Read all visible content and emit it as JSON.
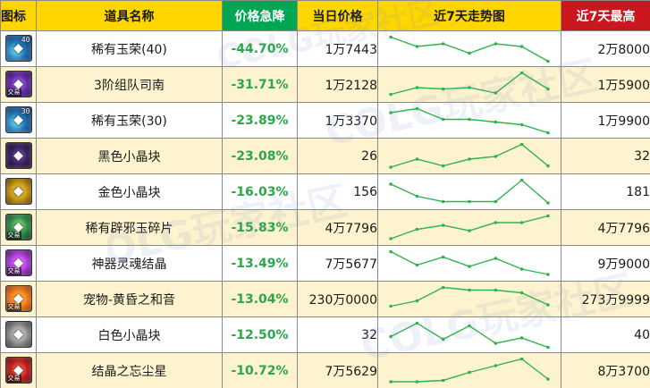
{
  "header": {
    "icon": "图标",
    "name": "道具名称",
    "drop": "价格急降",
    "today": "当日价格",
    "trend": "近7天走势图",
    "max": "近7天最高"
  },
  "colors": {
    "header_yellow": "#ffd600",
    "header_green": "#00a651",
    "header_red": "#c8171e",
    "drop_text": "#2aa84a",
    "trend_line": "#2fb34a",
    "row_alt": "#fdf3cf"
  },
  "watermark": {
    "text": "COLG玩家社区"
  },
  "rows": [
    {
      "icon": "rare-jade-icon",
      "icon_class": "icon-green",
      "badge": "40",
      "tradeable": "",
      "name": "稀有玉荣(40)",
      "drop": "-44.70%",
      "today": "1万7443",
      "max": "2万8000",
      "trend": [
        0.95,
        0.6,
        0.7,
        0.35,
        0.7,
        0.6,
        0.05
      ]
    },
    {
      "icon": "squad-guide-icon",
      "icon_class": "icon-purple",
      "badge": "",
      "tradeable": "交易",
      "name": "3阶组队司南",
      "drop": "-31.71%",
      "today": "1万2128",
      "max": "1万5900",
      "trend": [
        0.15,
        0.4,
        0.35,
        0.4,
        0.2,
        0.95,
        0.35
      ]
    },
    {
      "icon": "rare-jade-icon",
      "icon_class": "icon-green",
      "badge": "30",
      "tradeable": "",
      "name": "稀有玉荣(30)",
      "drop": "-23.89%",
      "today": "1万3370",
      "max": "1万9900",
      "trend": [
        0.8,
        0.95,
        0.55,
        0.55,
        0.45,
        0.35,
        0.05
      ]
    },
    {
      "icon": "black-crystal-icon",
      "icon_class": "icon-black",
      "badge": "",
      "tradeable": "",
      "name": "黑色小晶块",
      "drop": "-23.08%",
      "today": "26",
      "max": "32",
      "trend": [
        0.1,
        0.4,
        0.15,
        0.4,
        0.5,
        0.95,
        0.15
      ]
    },
    {
      "icon": "gold-crystal-icon",
      "icon_class": "icon-gold",
      "badge": "",
      "tradeable": "",
      "name": "金色小晶块",
      "drop": "-16.03%",
      "today": "156",
      "max": "181",
      "trend": [
        0.8,
        0.35,
        0.15,
        0.15,
        0.15,
        0.95,
        0.1
      ]
    },
    {
      "icon": "rare-jade-shard-icon",
      "icon_class": "icon-teal",
      "badge": "",
      "tradeable": "交易",
      "name": "稀有辟邪玉碎片",
      "drop": "-15.83%",
      "today": "4万7796",
      "max": "4万7796",
      "trend": [
        0.1,
        0.45,
        0.6,
        0.4,
        0.7,
        0.7,
        0.95
      ]
    },
    {
      "icon": "artifact-soul-icon",
      "icon_class": "icon-violet",
      "badge": "",
      "tradeable": "交易",
      "name": "神器灵魂结晶",
      "drop": "-13.49%",
      "today": "7万5677",
      "max": "9万9000",
      "trend": [
        0.95,
        0.45,
        0.75,
        0.4,
        0.7,
        0.3,
        0.1
      ]
    },
    {
      "icon": "pet-twilight-icon",
      "icon_class": "icon-orange",
      "badge": "",
      "tradeable": "交易",
      "name": "宠物-黄昏之和音",
      "drop": "-13.04%",
      "today": "230万0000",
      "max": "273万9999",
      "trend": [
        0.25,
        0.45,
        0.95,
        0.85,
        0.85,
        0.75,
        0.3
      ]
    },
    {
      "icon": "white-crystal-icon",
      "icon_class": "icon-white",
      "badge": "",
      "tradeable": "",
      "name": "白色小晶块",
      "drop": "-12.50%",
      "today": "32",
      "max": "40",
      "trend": [
        0.45,
        0.95,
        0.35,
        0.85,
        0.2,
        0.4,
        0.05
      ]
    },
    {
      "icon": "crystal-dust-icon",
      "icon_class": "icon-red",
      "badge": "",
      "tradeable": "交易",
      "name": "结晶之忘尘星",
      "drop": "-10.72%",
      "today": "7万5629",
      "max": "8万3700",
      "trend": [
        0.1,
        0.1,
        0.15,
        0.45,
        0.7,
        0.95,
        0.2
      ]
    }
  ]
}
